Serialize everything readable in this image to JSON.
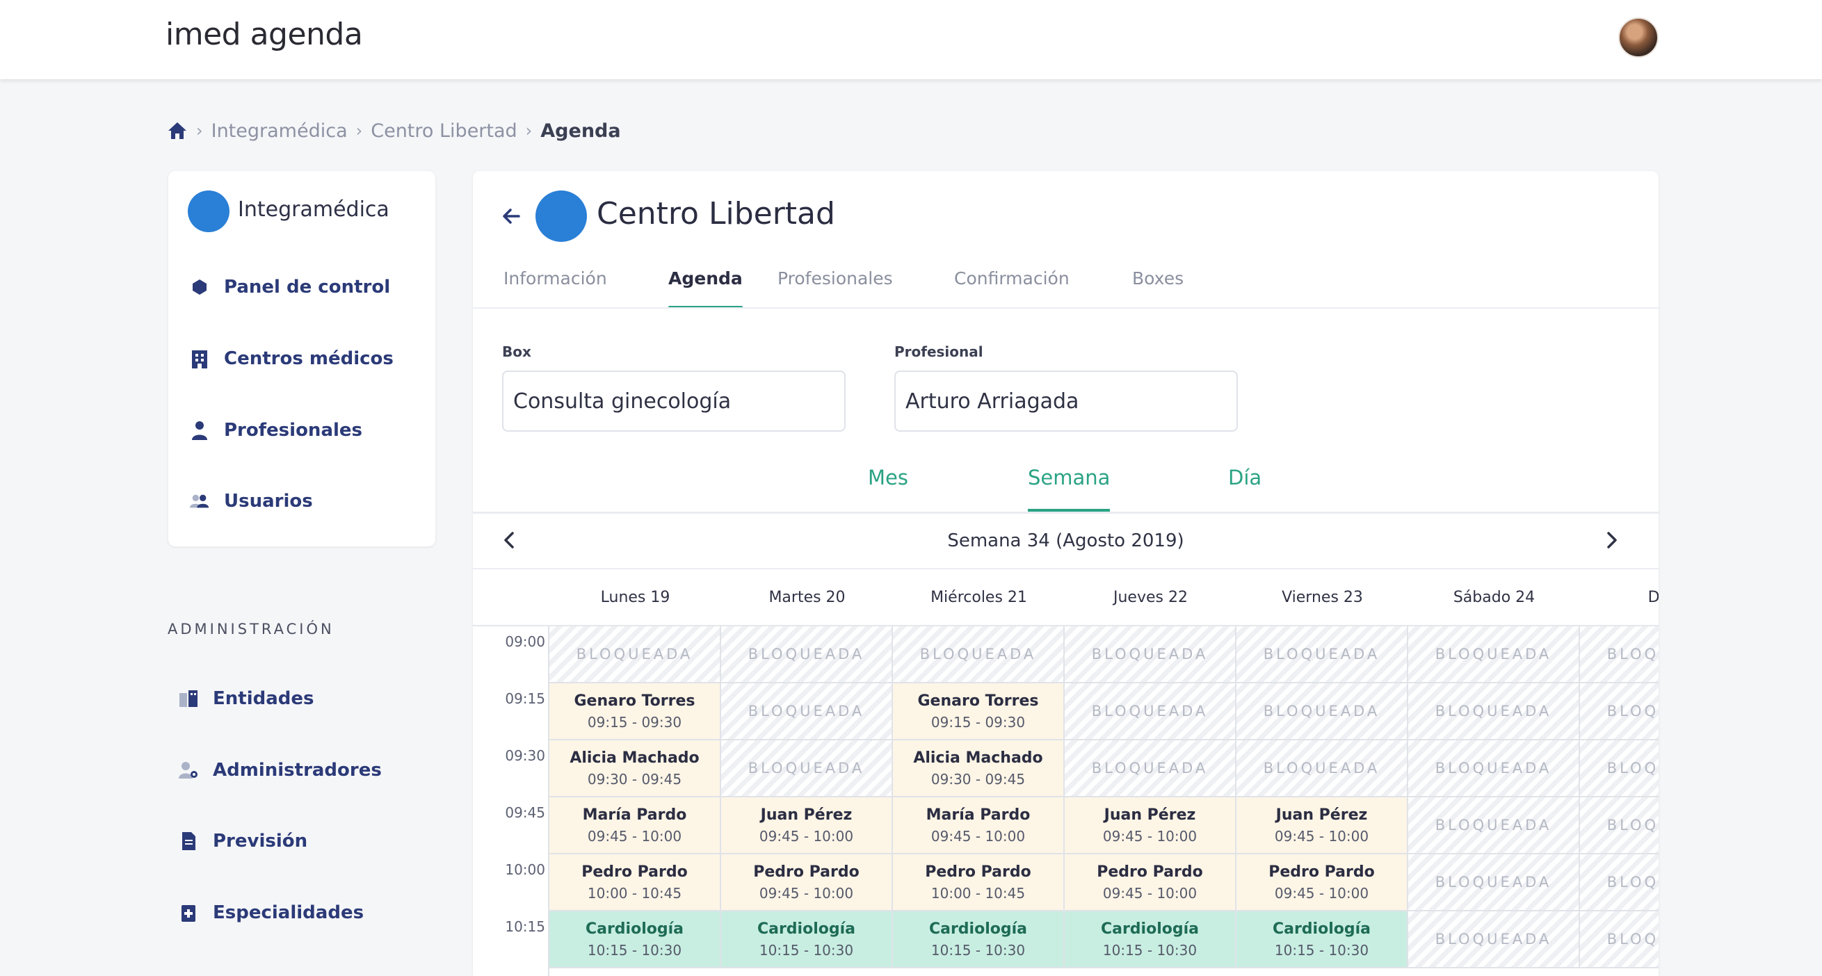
{
  "app": {
    "brand": "imed agenda"
  },
  "breadcrumb": [
    "Integramédica",
    "Centro Libertad",
    "Agenda"
  ],
  "sidebar": {
    "org_name": "Integramédica",
    "items": [
      {
        "label": "Panel de control",
        "icon": "dashboard-icon"
      },
      {
        "label": "Centros médicos",
        "icon": "building-icon"
      },
      {
        "label": "Profesionales",
        "icon": "doctor-icon"
      },
      {
        "label": "Usuarios",
        "icon": "users-icon"
      }
    ],
    "admin_title": "ADMINISTRACIÓN",
    "admin_items": [
      {
        "label": "Entidades",
        "icon": "entities-icon"
      },
      {
        "label": "Administradores",
        "icon": "admin-users-icon"
      },
      {
        "label": "Previsión",
        "icon": "document-icon"
      },
      {
        "label": "Especialidades",
        "icon": "medical-kit-icon"
      }
    ]
  },
  "main": {
    "title": "Centro Libertad",
    "tabs": [
      "Información",
      "Agenda",
      "Profesionales",
      "Confirmación",
      "Boxes"
    ],
    "active_tab": "Agenda",
    "filters": {
      "box_label": "Box",
      "box_value": "Consulta ginecología",
      "professional_label": "Profesional",
      "professional_value": "Arturo Arriagada"
    },
    "views": [
      "Mes",
      "Semana",
      "Día"
    ],
    "active_view": "Semana",
    "week_label": "Semana 34 (Agosto 2019)",
    "blocked_label": "BLOQUEADA",
    "days": [
      "Lunes 19",
      "Martes 20",
      "Miércoles 21",
      "Jueves 22",
      "Viernes 23",
      "Sábado 24",
      "Dom"
    ],
    "times": [
      "09:00",
      "09:15",
      "09:30",
      "09:45",
      "10:00",
      "10:15"
    ],
    "rows": [
      [
        {
          "type": "blocked"
        },
        {
          "type": "blocked"
        },
        {
          "type": "blocked"
        },
        {
          "type": "blocked"
        },
        {
          "type": "blocked"
        },
        {
          "type": "blocked"
        },
        {
          "type": "blocked"
        }
      ],
      [
        {
          "type": "appt",
          "name": "Genaro Torres",
          "time": "09:15 - 09:30"
        },
        {
          "type": "blocked"
        },
        {
          "type": "appt",
          "name": "Genaro Torres",
          "time": "09:15 - 09:30"
        },
        {
          "type": "blocked"
        },
        {
          "type": "blocked"
        },
        {
          "type": "blocked"
        },
        {
          "type": "blocked"
        }
      ],
      [
        {
          "type": "appt",
          "name": "Alicia Machado",
          "time": "09:30 - 09:45"
        },
        {
          "type": "blocked"
        },
        {
          "type": "appt",
          "name": "Alicia Machado",
          "time": "09:30 - 09:45"
        },
        {
          "type": "blocked"
        },
        {
          "type": "blocked"
        },
        {
          "type": "blocked"
        },
        {
          "type": "blocked"
        }
      ],
      [
        {
          "type": "appt",
          "name": "María Pardo",
          "time": "09:45 - 10:00"
        },
        {
          "type": "appt",
          "name": "Juan Pérez",
          "time": "09:45 - 10:00"
        },
        {
          "type": "appt",
          "name": "María Pardo",
          "time": "09:45 - 10:00"
        },
        {
          "type": "appt",
          "name": "Juan Pérez",
          "time": "09:45 - 10:00"
        },
        {
          "type": "appt",
          "name": "Juan Pérez",
          "time": "09:45 - 10:00"
        },
        {
          "type": "blocked"
        },
        {
          "type": "blocked"
        }
      ],
      [
        {
          "type": "appt",
          "name": "Pedro Pardo",
          "time": "10:00 - 10:45"
        },
        {
          "type": "appt",
          "name": "Pedro Pardo",
          "time": "09:45 - 10:00"
        },
        {
          "type": "appt",
          "name": "Pedro Pardo",
          "time": "10:00 - 10:45"
        },
        {
          "type": "appt",
          "name": "Pedro Pardo",
          "time": "09:45 - 10:00"
        },
        {
          "type": "appt",
          "name": "Pedro Pardo",
          "time": "09:45 - 10:00"
        },
        {
          "type": "blocked"
        },
        {
          "type": "blocked"
        }
      ],
      [
        {
          "type": "spec",
          "name": "Cardiología",
          "time": "10:15 - 10:30"
        },
        {
          "type": "spec",
          "name": "Cardiología",
          "time": "10:15 - 10:30"
        },
        {
          "type": "spec",
          "name": "Cardiología",
          "time": "10:15 - 10:30"
        },
        {
          "type": "spec",
          "name": "Cardiología",
          "time": "10:15 - 10:30"
        },
        {
          "type": "spec",
          "name": "Cardiología",
          "time": "10:15 - 10:30"
        },
        {
          "type": "blocked"
        },
        {
          "type": "blocked"
        }
      ]
    ]
  },
  "colors": {
    "accent": "#2aa384",
    "nav_text": "#2b3a78",
    "appointment_bg": "#fdf5e6",
    "specialty_bg": "#c8eee1",
    "logo_blue": "#2a7fd6"
  }
}
